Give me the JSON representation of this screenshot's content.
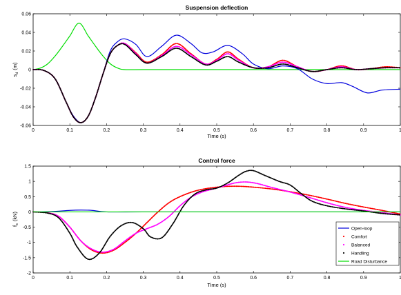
{
  "chart_data": [
    {
      "type": "line",
      "title": "Suspension deflection",
      "xlabel": "Time (s)",
      "ylabel_main": "s",
      "ylabel_sub": "d",
      "ylabel_unit": "(m)",
      "xlim": [
        0,
        1
      ],
      "ylim": [
        -0.06,
        0.06
      ],
      "xticks": [
        0,
        0.1,
        0.2,
        0.3,
        0.4,
        0.5,
        0.6,
        0.7,
        0.8,
        0.9,
        1
      ],
      "xtick_labels": [
        "0",
        "0.1",
        "0.2",
        "0.3",
        "0.4",
        "0.5",
        "0.6",
        "0.7",
        "0.8",
        "0.9",
        "1"
      ],
      "yticks": [
        -0.06,
        -0.04,
        -0.02,
        0,
        0.02,
        0.04,
        0.06
      ],
      "ytick_labels": [
        "-0.06",
        "-0.04",
        "-0.02",
        "0",
        "0.02",
        "0.04",
        "0.06"
      ],
      "series": [
        {
          "name": "Road Disturbance",
          "color": "#00dd00",
          "style": "line",
          "x": [
            0,
            0.02,
            0.04,
            0.06,
            0.08,
            0.1,
            0.125,
            0.15,
            0.17,
            0.19,
            0.21,
            0.23,
            0.25,
            0.3,
            0.4,
            0.5,
            0.6,
            0.7,
            0.8,
            0.9,
            1
          ],
          "y": [
            0,
            0.0017,
            0.0063,
            0.0147,
            0.0251,
            0.0362,
            0.05,
            0.0362,
            0.0251,
            0.0147,
            0.0063,
            0.0017,
            0,
            0,
            0,
            0,
            0,
            0,
            0,
            0,
            0
          ]
        },
        {
          "name": "Open-loop",
          "color": "#0000dd",
          "style": "line",
          "x": [
            0,
            0.03,
            0.06,
            0.09,
            0.11,
            0.13,
            0.15,
            0.17,
            0.19,
            0.21,
            0.23,
            0.25,
            0.28,
            0.31,
            0.35,
            0.39,
            0.43,
            0.46,
            0.49,
            0.53,
            0.57,
            0.6,
            0.64,
            0.68,
            0.72,
            0.76,
            0.8,
            0.84,
            0.87,
            0.91,
            0.95,
            1
          ],
          "y": [
            0,
            -0.001,
            -0.01,
            -0.035,
            -0.05,
            -0.057,
            -0.05,
            -0.03,
            -0.005,
            0.02,
            0.03,
            0.033,
            0.027,
            0.014,
            0.025,
            0.037,
            0.028,
            0.018,
            0.019,
            0.026,
            0.017,
            0.006,
            0.001,
            0.004,
            0.001,
            -0.01,
            -0.015,
            -0.014,
            -0.018,
            -0.025,
            -0.022,
            -0.021
          ]
        },
        {
          "name": "Comfort",
          "color": "#ff0000",
          "style": "dots",
          "x": [
            0,
            0.03,
            0.06,
            0.09,
            0.11,
            0.13,
            0.15,
            0.17,
            0.19,
            0.21,
            0.23,
            0.25,
            0.28,
            0.31,
            0.35,
            0.39,
            0.43,
            0.47,
            0.5,
            0.53,
            0.56,
            0.6,
            0.64,
            0.68,
            0.72,
            0.76,
            0.8,
            0.84,
            0.88,
            0.92,
            0.96,
            1
          ],
          "y": [
            0,
            -0.001,
            -0.01,
            -0.035,
            -0.051,
            -0.057,
            -0.05,
            -0.03,
            -0.005,
            0.017,
            0.026,
            0.028,
            0.018,
            0.008,
            0.016,
            0.028,
            0.017,
            0.006,
            0.011,
            0.019,
            0.011,
            0.002,
            0.003,
            0.01,
            0.003,
            -0.002,
            0,
            0.004,
            0,
            0.001,
            0.003,
            0.002
          ]
        },
        {
          "name": "Balanced",
          "color": "#ff00ff",
          "style": "dots",
          "x": [
            0,
            0.03,
            0.06,
            0.09,
            0.11,
            0.13,
            0.15,
            0.17,
            0.19,
            0.21,
            0.23,
            0.25,
            0.28,
            0.31,
            0.35,
            0.39,
            0.43,
            0.47,
            0.5,
            0.53,
            0.56,
            0.6,
            0.64,
            0.68,
            0.72,
            0.76,
            0.8,
            0.84,
            0.88,
            0.92,
            0.96,
            1
          ],
          "y": [
            0,
            -0.001,
            -0.01,
            -0.035,
            -0.051,
            -0.057,
            -0.05,
            -0.03,
            -0.005,
            0.017,
            0.026,
            0.028,
            0.017,
            0.007,
            0.015,
            0.025,
            0.016,
            0.006,
            0.01,
            0.017,
            0.01,
            0.002,
            0.003,
            0.008,
            0.003,
            -0.002,
            0,
            0.003,
            0,
            0.001,
            0.002,
            0.002
          ]
        },
        {
          "name": "Handling",
          "color": "#000000",
          "style": "dots",
          "x": [
            0,
            0.03,
            0.06,
            0.09,
            0.11,
            0.13,
            0.15,
            0.17,
            0.19,
            0.21,
            0.23,
            0.25,
            0.28,
            0.31,
            0.35,
            0.39,
            0.43,
            0.47,
            0.5,
            0.53,
            0.56,
            0.6,
            0.64,
            0.68,
            0.72,
            0.76,
            0.8,
            0.84,
            0.88,
            0.92,
            0.96,
            1
          ],
          "y": [
            0,
            -0.001,
            -0.01,
            -0.035,
            -0.051,
            -0.057,
            -0.05,
            -0.03,
            -0.005,
            0.017,
            0.026,
            0.027,
            0.016,
            0.007,
            0.014,
            0.023,
            0.014,
            0.005,
            0.009,
            0.014,
            0.008,
            0.002,
            0.002,
            0.006,
            0.002,
            -0.002,
            0,
            0.002,
            0,
            0.001,
            0.002,
            0.002
          ]
        }
      ]
    },
    {
      "type": "line",
      "title": "Control force",
      "xlabel": "Time (s)",
      "ylabel_main": "f",
      "ylabel_sub": "s",
      "ylabel_unit": "(kN)",
      "xlim": [
        0,
        1
      ],
      "ylim": [
        -2,
        1.5
      ],
      "xticks": [
        0,
        0.1,
        0.2,
        0.3,
        0.4,
        0.5,
        0.6,
        0.7,
        0.8,
        0.9,
        1
      ],
      "xtick_labels": [
        "0",
        "0.1",
        "0.2",
        "0.3",
        "0.4",
        "0.5",
        "0.6",
        "0.7",
        "0.8",
        "0.9",
        "1"
      ],
      "yticks": [
        -2,
        -1.5,
        -1,
        -0.5,
        0,
        0.5,
        1,
        1.5
      ],
      "ytick_labels": [
        "-2",
        "-1.5",
        "-1",
        "-0.5",
        "0",
        "0.5",
        "1",
        "1.5"
      ],
      "legend_position": "bottom-right",
      "series": [
        {
          "name": "Open-loop",
          "color": "#0000dd",
          "style": "line",
          "x": [
            0,
            0.05,
            0.1,
            0.13,
            0.16,
            0.2,
            0.3,
            0.5,
            0.7,
            0.9,
            1
          ],
          "y": [
            0,
            0.01,
            0.05,
            0.06,
            0.05,
            0,
            0,
            0,
            0,
            0,
            0
          ]
        },
        {
          "name": "Comfort",
          "color": "#ff0000",
          "style": "dots",
          "x": [
            0,
            0.04,
            0.07,
            0.1,
            0.13,
            0.16,
            0.19,
            0.22,
            0.25,
            0.28,
            0.31,
            0.34,
            0.37,
            0.4,
            0.44,
            0.48,
            0.52,
            0.56,
            0.6,
            0.65,
            0.7,
            0.75,
            0.8,
            0.85,
            0.9,
            0.95,
            1
          ],
          "y": [
            0,
            -0.03,
            -0.15,
            -0.5,
            -0.95,
            -1.25,
            -1.35,
            -1.25,
            -1.0,
            -0.7,
            -0.35,
            0,
            0.3,
            0.5,
            0.68,
            0.78,
            0.83,
            0.84,
            0.81,
            0.75,
            0.66,
            0.55,
            0.42,
            0.28,
            0.16,
            0.05,
            -0.07
          ]
        },
        {
          "name": "Balanced",
          "color": "#ff00ff",
          "style": "dots",
          "x": [
            0,
            0.04,
            0.07,
            0.1,
            0.13,
            0.16,
            0.19,
            0.22,
            0.25,
            0.28,
            0.31,
            0.34,
            0.37,
            0.4,
            0.43,
            0.46,
            0.49,
            0.52,
            0.55,
            0.58,
            0.61,
            0.65,
            0.7,
            0.75,
            0.8,
            0.85,
            0.9,
            0.95,
            1
          ],
          "y": [
            0,
            -0.03,
            -0.15,
            -0.5,
            -0.95,
            -1.22,
            -1.32,
            -1.22,
            -0.95,
            -0.7,
            -0.55,
            -0.4,
            -0.15,
            0.2,
            0.48,
            0.65,
            0.75,
            0.85,
            0.95,
            0.98,
            0.93,
            0.8,
            0.65,
            0.48,
            0.3,
            0.15,
            0.05,
            -0.02,
            -0.1
          ]
        },
        {
          "name": "Handling",
          "color": "#000000",
          "style": "dots",
          "x": [
            0,
            0.04,
            0.07,
            0.1,
            0.12,
            0.15,
            0.18,
            0.21,
            0.24,
            0.27,
            0.3,
            0.32,
            0.35,
            0.38,
            0.41,
            0.44,
            0.47,
            0.5,
            0.53,
            0.56,
            0.58,
            0.6,
            0.63,
            0.67,
            0.7,
            0.73,
            0.76,
            0.8,
            0.85,
            0.9,
            0.95,
            1
          ],
          "y": [
            0,
            -0.04,
            -0.2,
            -0.7,
            -1.15,
            -1.55,
            -1.35,
            -0.8,
            -0.45,
            -0.35,
            -0.55,
            -0.82,
            -0.85,
            -0.4,
            0.2,
            0.58,
            0.72,
            0.78,
            0.95,
            1.2,
            1.33,
            1.35,
            1.2,
            1.0,
            0.88,
            0.6,
            0.35,
            0.2,
            0.1,
            0.03,
            -0.05,
            -0.1
          ]
        },
        {
          "name": "Road Disturbance",
          "color": "#00dd00",
          "style": "line",
          "x": [
            0,
            1
          ],
          "y": [
            0,
            0
          ]
        }
      ]
    }
  ]
}
